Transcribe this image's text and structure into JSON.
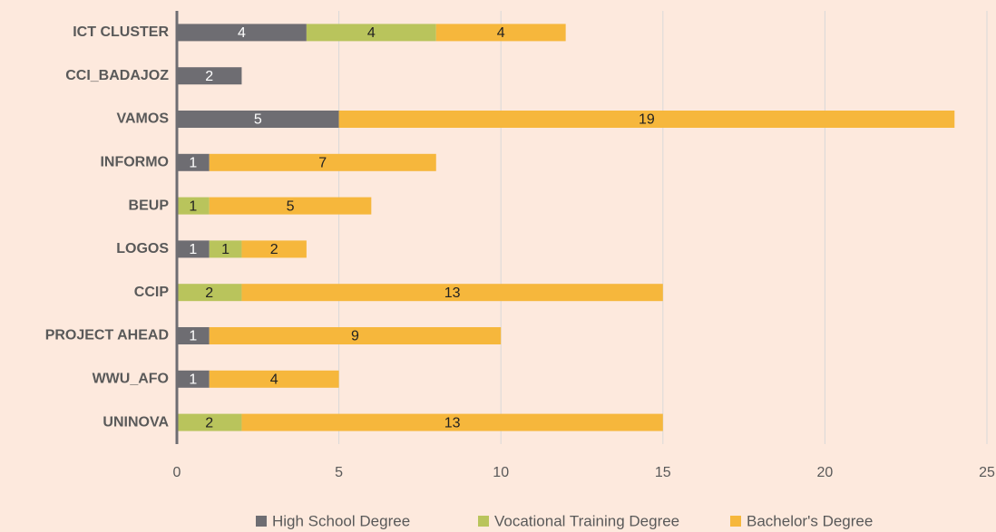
{
  "chart_data": {
    "type": "stacked-bar-horizontal",
    "categories": [
      "ICT CLUSTER",
      "CCI_BADAJOZ",
      "VAMOS",
      "INFORMO",
      "BEUP",
      "LOGOS",
      "CCIP",
      "PROJECT AHEAD",
      "WWU_AFO",
      "UNINOVA"
    ],
    "series": [
      {
        "name": "High School Degree",
        "color": "#6e6d72",
        "values": [
          4,
          2,
          5,
          1,
          null,
          1,
          null,
          1,
          1,
          null
        ]
      },
      {
        "name": "Vocational Training Degree",
        "color": "#b9c45c",
        "values": [
          4,
          null,
          null,
          null,
          1,
          1,
          2,
          null,
          null,
          2
        ]
      },
      {
        "name": "Bachelor's Degree",
        "color": "#f6b73c",
        "values": [
          4,
          null,
          19,
          7,
          5,
          2,
          13,
          9,
          4,
          13
        ]
      }
    ],
    "xlim": [
      0,
      25
    ],
    "xticks": [
      0,
      5,
      10,
      15,
      20,
      25
    ],
    "grid": true,
    "legend": "bottom"
  }
}
